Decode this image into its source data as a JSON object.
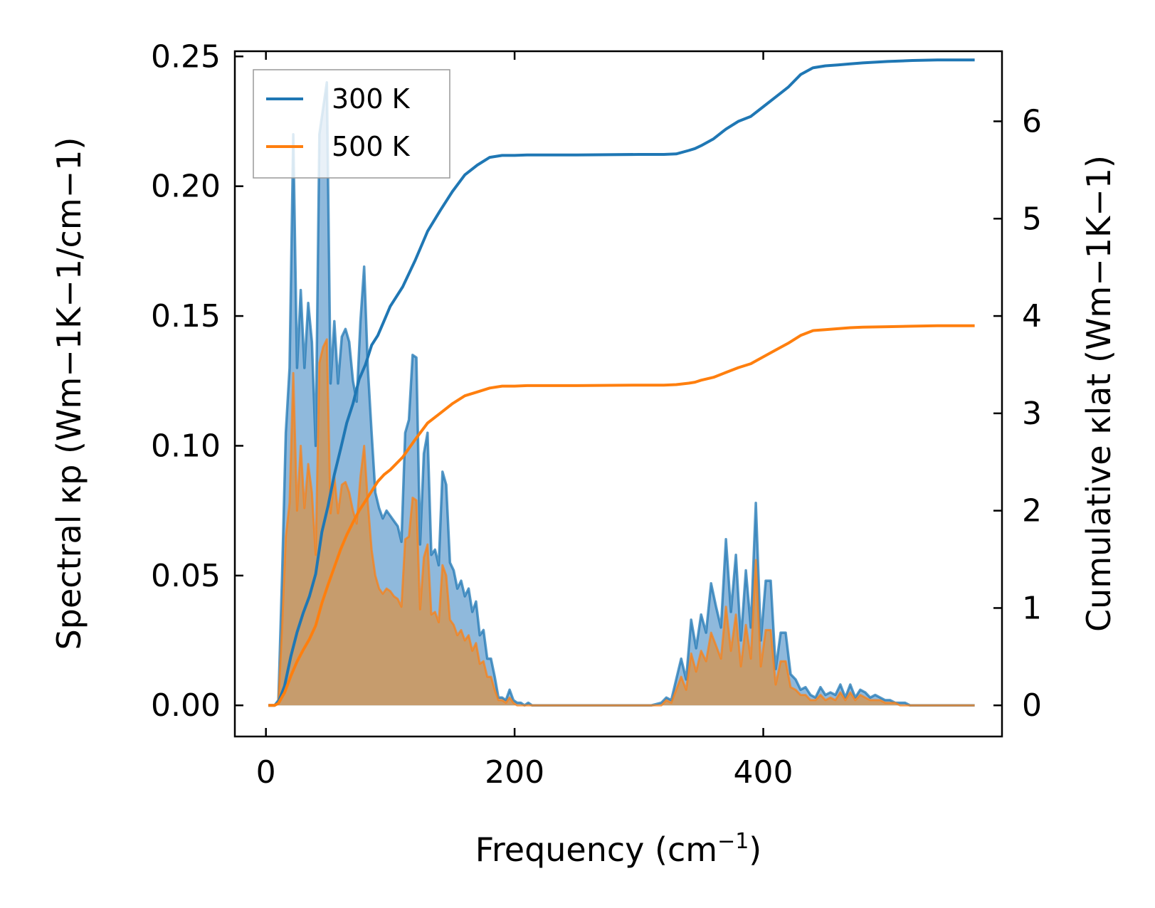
{
  "chart_data": {
    "type": "line",
    "xlabel": {
      "base": "Frequency (cm",
      "sup": "−1",
      "tail": ")"
    },
    "ylabel_left": "Spectral κp (Wm−1K−1/cm−1)",
    "ylabel_right": "Cumulative κlat (Wm−1K−1)",
    "xlim": [
      -25,
      592
    ],
    "ylim_left": [
      -0.012,
      0.252
    ],
    "ylim_right": [
      -0.32,
      6.72
    ],
    "xticks": [
      0,
      200,
      400
    ],
    "xtick_labels": [
      "0",
      "200",
      "400"
    ],
    "yticks_left": [
      0.0,
      0.05,
      0.1,
      0.15,
      0.2,
      0.25
    ],
    "ytick_labels_left": [
      "0.00",
      "0.05",
      "0.10",
      "0.15",
      "0.20",
      "0.25"
    ],
    "yticks_right": [
      0,
      1,
      2,
      3,
      4,
      5,
      6
    ],
    "ytick_labels_right": [
      "0",
      "1",
      "2",
      "3",
      "4",
      "5",
      "6"
    ],
    "legend": {
      "position": "top-left",
      "entries": [
        "300 K",
        "500 K"
      ]
    },
    "colors": {
      "300K": "#1f77b4",
      "500K": "#ff7f0e",
      "fill300": "#8fb9dc",
      "fill500": "#c69c6d"
    },
    "spectral": {
      "x": [
        2,
        7,
        10,
        13,
        16,
        19,
        22,
        25,
        28,
        31,
        34,
        37,
        40,
        43,
        46,
        49,
        52,
        55,
        58,
        61,
        64,
        67,
        70,
        73,
        76,
        79,
        82,
        85,
        88,
        91,
        94,
        97,
        100,
        103,
        106,
        109,
        112,
        115,
        118,
        121,
        124,
        127,
        130,
        133,
        136,
        139,
        142,
        145,
        148,
        151,
        154,
        157,
        160,
        163,
        166,
        169,
        172,
        175,
        178,
        181,
        184,
        187,
        190,
        193,
        196,
        199,
        202,
        205,
        208,
        211,
        214,
        217,
        220,
        223,
        226,
        229,
        232,
        235,
        240,
        260,
        280,
        300,
        310,
        318,
        322,
        326,
        330,
        334,
        338,
        342,
        346,
        350,
        354,
        358,
        362,
        366,
        370,
        374,
        378,
        382,
        386,
        390,
        394,
        398,
        402,
        406,
        410,
        414,
        418,
        422,
        426,
        430,
        434,
        438,
        442,
        446,
        450,
        454,
        458,
        462,
        466,
        470,
        474,
        478,
        482,
        486,
        490,
        494,
        498,
        502,
        506,
        510,
        514,
        518,
        522,
        526,
        530,
        534,
        538,
        542,
        546,
        550,
        555,
        562,
        570
      ],
      "300K": [
        0.0,
        0.0,
        0.002,
        0.05,
        0.105,
        0.13,
        0.22,
        0.13,
        0.16,
        0.13,
        0.155,
        0.14,
        0.1,
        0.22,
        0.23,
        0.24,
        0.124,
        0.148,
        0.124,
        0.142,
        0.145,
        0.14,
        0.125,
        0.117,
        0.148,
        0.169,
        0.13,
        0.105,
        0.082,
        0.076,
        0.072,
        0.075,
        0.073,
        0.071,
        0.069,
        0.063,
        0.105,
        0.11,
        0.135,
        0.134,
        0.062,
        0.097,
        0.105,
        0.058,
        0.06,
        0.054,
        0.09,
        0.085,
        0.055,
        0.052,
        0.045,
        0.048,
        0.042,
        0.045,
        0.036,
        0.04,
        0.027,
        0.029,
        0.018,
        0.018,
        0.011,
        0.003,
        0.003,
        0.002,
        0.006,
        0.002,
        0.001,
        0.001,
        0.0,
        0.001,
        0.0,
        0.0,
        0.0,
        0.0,
        0.0,
        0.0,
        0.0,
        0.0,
        0.0,
        0.0,
        0.0,
        0.0,
        0.0,
        0.001,
        0.003,
        0.002,
        0.01,
        0.018,
        0.01,
        0.033,
        0.022,
        0.035,
        0.028,
        0.047,
        0.038,
        0.03,
        0.064,
        0.036,
        0.058,
        0.025,
        0.052,
        0.03,
        0.078,
        0.025,
        0.048,
        0.048,
        0.014,
        0.028,
        0.028,
        0.012,
        0.01,
        0.006,
        0.007,
        0.004,
        0.003,
        0.007,
        0.004,
        0.005,
        0.004,
        0.008,
        0.003,
        0.008,
        0.003,
        0.006,
        0.005,
        0.003,
        0.004,
        0.003,
        0.002,
        0.002,
        0.001,
        0.001,
        0.001,
        0.0,
        0.0,
        0.0,
        0.0,
        0.0,
        0.0,
        0.0,
        0.0,
        0.0,
        0.0,
        0.0,
        0.0
      ],
      "500K": [
        0.0,
        0.0,
        0.001,
        0.03,
        0.065,
        0.078,
        0.128,
        0.075,
        0.1,
        0.076,
        0.093,
        0.082,
        0.058,
        0.132,
        0.138,
        0.141,
        0.074,
        0.088,
        0.074,
        0.085,
        0.086,
        0.082,
        0.075,
        0.07,
        0.088,
        0.1,
        0.078,
        0.06,
        0.05,
        0.045,
        0.043,
        0.045,
        0.044,
        0.042,
        0.041,
        0.038,
        0.064,
        0.065,
        0.08,
        0.079,
        0.037,
        0.057,
        0.062,
        0.035,
        0.036,
        0.032,
        0.054,
        0.05,
        0.033,
        0.031,
        0.027,
        0.029,
        0.025,
        0.027,
        0.021,
        0.024,
        0.016,
        0.017,
        0.011,
        0.011,
        0.006,
        0.002,
        0.002,
        0.001,
        0.003,
        0.001,
        0.0,
        0.0,
        0.0,
        0.0,
        0.0,
        0.0,
        0.0,
        0.0,
        0.0,
        0.0,
        0.0,
        0.0,
        0.0,
        0.0,
        0.0,
        0.0,
        0.0,
        0.0,
        0.002,
        0.001,
        0.006,
        0.011,
        0.006,
        0.02,
        0.013,
        0.021,
        0.017,
        0.028,
        0.023,
        0.018,
        0.038,
        0.021,
        0.035,
        0.015,
        0.031,
        0.018,
        0.056,
        0.015,
        0.029,
        0.029,
        0.008,
        0.017,
        0.017,
        0.007,
        0.006,
        0.004,
        0.004,
        0.002,
        0.002,
        0.004,
        0.002,
        0.003,
        0.002,
        0.005,
        0.002,
        0.005,
        0.002,
        0.004,
        0.003,
        0.002,
        0.002,
        0.002,
        0.001,
        0.001,
        0.001,
        0.0,
        0.0,
        0.0,
        0.0,
        0.0,
        0.0,
        0.0,
        0.0,
        0.0,
        0.0,
        0.0,
        0.0,
        0.0,
        0.0
      ]
    },
    "cumulative": {
      "x": [
        2,
        7,
        10,
        15,
        20,
        25,
        30,
        35,
        40,
        45,
        50,
        55,
        60,
        65,
        70,
        75,
        80,
        85,
        90,
        95,
        100,
        110,
        120,
        130,
        140,
        150,
        160,
        170,
        180,
        190,
        200,
        210,
        230,
        250,
        300,
        320,
        330,
        340,
        345,
        350,
        360,
        370,
        380,
        390,
        400,
        410,
        420,
        430,
        440,
        450,
        460,
        470,
        480,
        500,
        520,
        540,
        560,
        570
      ],
      "300K": [
        0,
        0,
        0.03,
        0.2,
        0.5,
        0.75,
        0.95,
        1.12,
        1.35,
        1.78,
        2.05,
        2.37,
        2.63,
        2.9,
        3.1,
        3.35,
        3.5,
        3.7,
        3.8,
        3.95,
        4.1,
        4.3,
        4.57,
        4.87,
        5.08,
        5.28,
        5.45,
        5.55,
        5.63,
        5.65,
        5.65,
        5.655,
        5.655,
        5.655,
        5.66,
        5.66,
        5.665,
        5.7,
        5.72,
        5.75,
        5.82,
        5.92,
        6.0,
        6.05,
        6.15,
        6.25,
        6.35,
        6.48,
        6.55,
        6.57,
        6.58,
        6.59,
        6.6,
        6.615,
        6.625,
        6.63,
        6.63,
        6.63
      ],
      "500K": [
        0,
        0,
        0.02,
        0.13,
        0.3,
        0.45,
        0.57,
        0.68,
        0.82,
        1.05,
        1.24,
        1.42,
        1.6,
        1.75,
        1.88,
        2.0,
        2.1,
        2.2,
        2.3,
        2.37,
        2.42,
        2.55,
        2.73,
        2.9,
        3.0,
        3.1,
        3.18,
        3.22,
        3.26,
        3.28,
        3.28,
        3.285,
        3.285,
        3.285,
        3.29,
        3.29,
        3.295,
        3.31,
        3.32,
        3.34,
        3.37,
        3.42,
        3.47,
        3.51,
        3.58,
        3.65,
        3.72,
        3.8,
        3.85,
        3.86,
        3.87,
        3.88,
        3.885,
        3.89,
        3.895,
        3.9,
        3.9,
        3.9
      ]
    }
  }
}
